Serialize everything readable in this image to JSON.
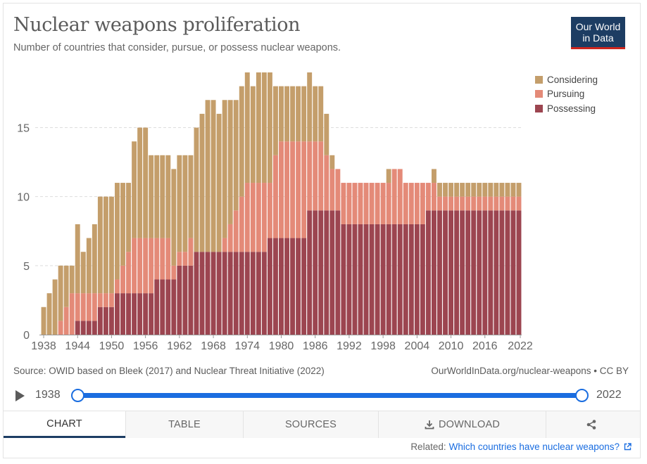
{
  "header": {
    "title": "Nuclear weapons proliferation",
    "subtitle": "Number of countries that consider, pursue, or possess nuclear weapons.",
    "logo_line1": "Our World",
    "logo_line2": "in Data"
  },
  "colors": {
    "considering": "#c49e6b",
    "pursuing": "#e48a78",
    "possessing": "#9c4550",
    "grid": "#dddddd",
    "axis_text": "#666666",
    "accent": "#1a6de0",
    "brand": "#1d3d63",
    "brand_red": "#ce261e"
  },
  "chart_data": {
    "type": "bar",
    "stacked": true,
    "title": "Nuclear weapons proliferation",
    "xlabel": "",
    "ylabel": "",
    "ylim": [
      0,
      19
    ],
    "yticks": [
      0,
      5,
      10,
      15
    ],
    "grid": true,
    "legend_position": "top-right",
    "xtick_labels": [
      "1938",
      "1944",
      "1950",
      "1956",
      "1962",
      "1968",
      "1974",
      "1980",
      "1986",
      "1992",
      "1998",
      "2004",
      "2010",
      "2016",
      "2022"
    ],
    "categories": [
      "1938",
      "1939",
      "1940",
      "1941",
      "1942",
      "1943",
      "1944",
      "1945",
      "1946",
      "1947",
      "1948",
      "1949",
      "1950",
      "1951",
      "1952",
      "1953",
      "1954",
      "1955",
      "1956",
      "1957",
      "1958",
      "1959",
      "1960",
      "1961",
      "1962",
      "1963",
      "1964",
      "1965",
      "1966",
      "1967",
      "1968",
      "1969",
      "1970",
      "1971",
      "1972",
      "1973",
      "1974",
      "1975",
      "1976",
      "1977",
      "1978",
      "1979",
      "1980",
      "1981",
      "1982",
      "1983",
      "1984",
      "1985",
      "1986",
      "1987",
      "1988",
      "1989",
      "1990",
      "1991",
      "1992",
      "1993",
      "1994",
      "1995",
      "1996",
      "1997",
      "1998",
      "1999",
      "2000",
      "2001",
      "2002",
      "2003",
      "2004",
      "2005",
      "2006",
      "2007",
      "2008",
      "2009",
      "2010",
      "2011",
      "2012",
      "2013",
      "2014",
      "2015",
      "2016",
      "2017",
      "2018",
      "2019",
      "2020",
      "2021",
      "2022"
    ],
    "series": [
      {
        "name": "Possessing",
        "color_key": "possessing",
        "values": [
          0,
          0,
          0,
          0,
          0,
          0,
          1,
          1,
          1,
          1,
          2,
          2,
          2,
          3,
          3,
          3,
          3,
          3,
          3,
          3,
          4,
          4,
          4,
          4,
          5,
          5,
          5,
          6,
          6,
          6,
          6,
          6,
          6,
          6,
          6,
          6,
          6,
          6,
          6,
          6,
          7,
          7,
          7,
          7,
          7,
          7,
          7,
          9,
          9,
          9,
          9,
          9,
          9,
          8,
          8,
          8,
          8,
          8,
          8,
          8,
          8,
          8,
          8,
          8,
          8,
          8,
          8,
          8,
          9,
          9,
          9,
          9,
          9,
          9,
          9,
          9,
          9,
          9,
          9,
          9,
          9,
          9,
          9,
          9,
          9
        ]
      },
      {
        "name": "Pursuing",
        "color_key": "pursuing",
        "values": [
          0,
          0,
          0,
          1,
          2,
          3,
          2,
          2,
          2,
          2,
          1,
          1,
          1,
          1,
          2,
          3,
          4,
          4,
          4,
          4,
          3,
          3,
          3,
          1,
          1,
          1,
          2,
          0,
          0,
          0,
          0,
          0,
          1,
          2,
          3,
          4,
          5,
          5,
          5,
          5,
          4,
          6,
          7,
          7,
          7,
          7,
          7,
          5,
          5,
          5,
          4,
          3,
          3,
          3,
          3,
          3,
          3,
          3,
          3,
          3,
          3,
          3,
          4,
          4,
          3,
          3,
          3,
          3,
          2,
          2,
          1,
          1,
          1,
          1,
          1,
          1,
          1,
          1,
          1,
          1,
          1,
          1,
          1,
          1,
          1
        ]
      },
      {
        "name": "Considering",
        "color_key": "considering",
        "values": [
          2,
          3,
          4,
          4,
          3,
          2,
          5,
          3,
          4,
          5,
          7,
          7,
          7,
          7,
          6,
          5,
          7,
          8,
          8,
          6,
          6,
          6,
          6,
          7,
          7,
          7,
          6,
          9,
          10,
          11,
          11,
          10,
          10,
          9,
          8,
          8,
          8,
          7,
          8,
          8,
          8,
          5,
          4,
          4,
          4,
          4,
          4,
          5,
          4,
          4,
          3,
          1,
          0,
          0,
          0,
          0,
          0,
          0,
          0,
          0,
          0,
          1,
          0,
          0,
          0,
          0,
          0,
          0,
          0,
          1,
          1,
          1,
          1,
          1,
          1,
          1,
          1,
          1,
          1,
          1,
          1,
          1,
          1,
          1,
          1
        ]
      }
    ]
  },
  "footer": {
    "source": "Source: OWID based on Bleek (2017) and Nuclear Threat Initiative (2022)",
    "credit": "OurWorldInData.org/nuclear-weapons • CC BY"
  },
  "timeline": {
    "start_label": "1938",
    "end_label": "2022"
  },
  "tabs": {
    "chart": "CHART",
    "table": "TABLE",
    "sources": "SOURCES",
    "download": "DOWNLOAD"
  },
  "related": {
    "prefix": "Related:",
    "link_text": "Which countries have nuclear weapons?"
  }
}
